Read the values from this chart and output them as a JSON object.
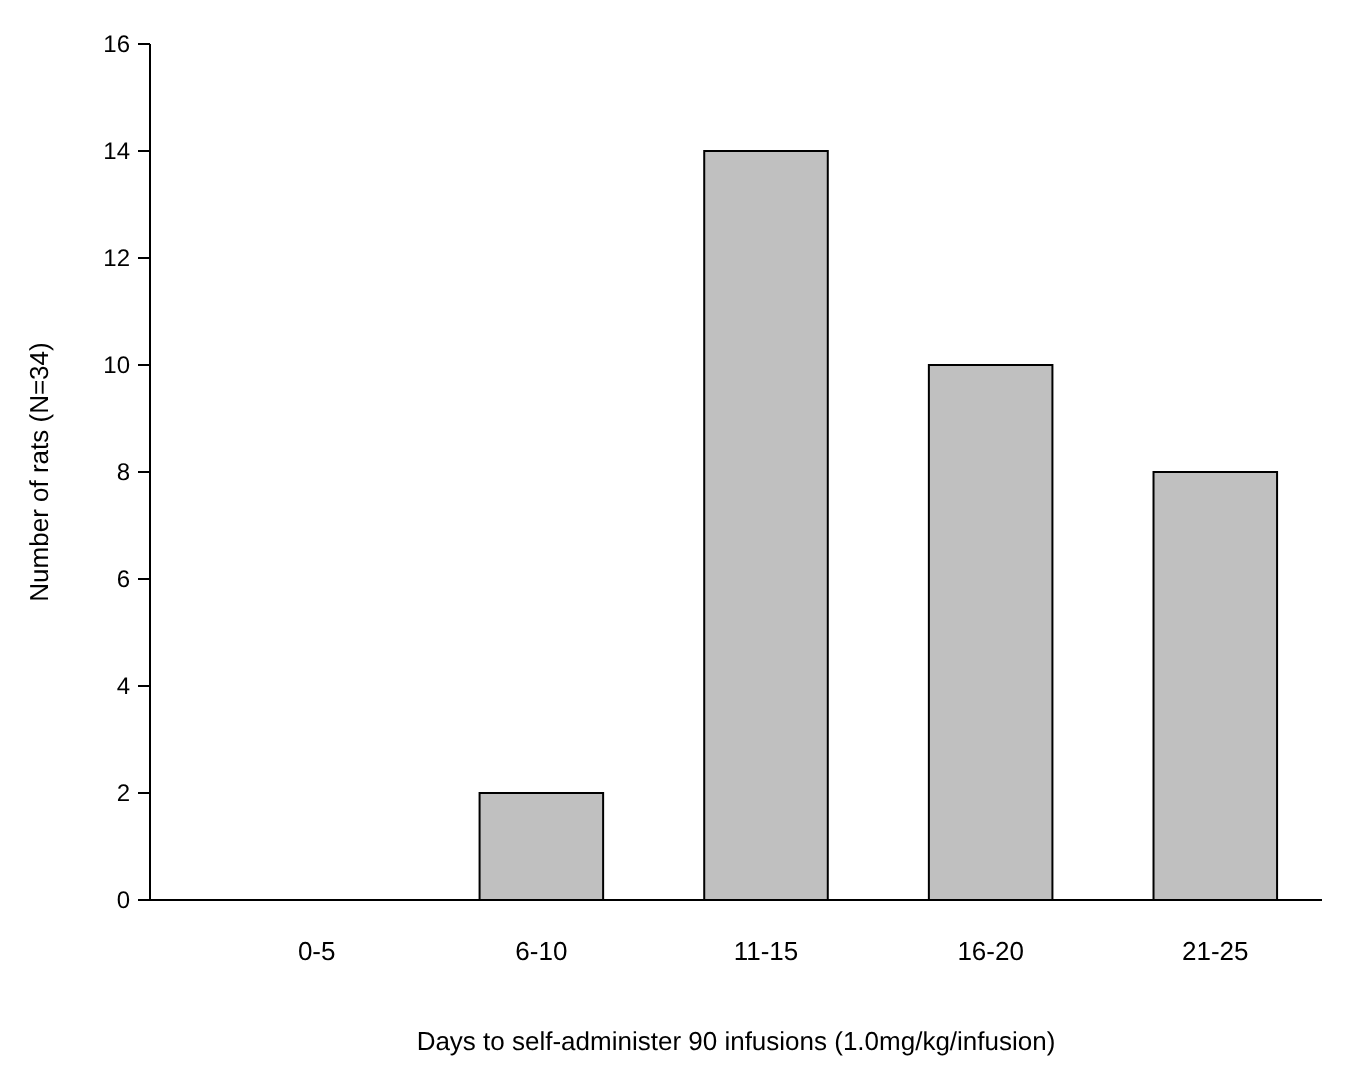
{
  "chart_data": {
    "type": "bar",
    "xlabel": "Days to self-administer 90 infusions (1.0mg/kg/infusion)",
    "ylabel": "Number of rats (N=34)",
    "categories": [
      "0-5",
      "6-10",
      "11-15",
      "16-20",
      "21-25"
    ],
    "values": [
      0,
      2,
      14,
      10,
      8
    ],
    "color": "#c0c0c0",
    "ylim": [
      0,
      16
    ],
    "yticks": [
      0,
      2,
      4,
      6,
      8,
      10,
      12,
      14,
      16
    ],
    "grid": false
  }
}
